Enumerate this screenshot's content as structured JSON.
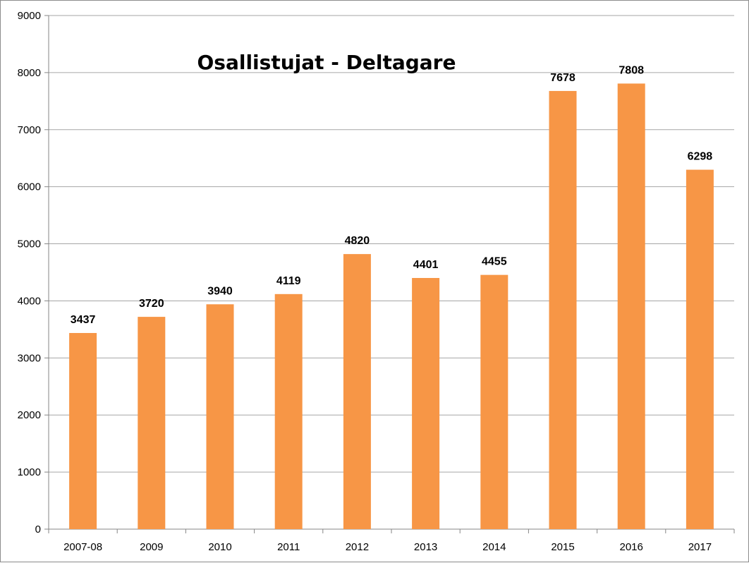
{
  "chart_data": {
    "type": "bar",
    "title": "Osallistujat - Deltagare",
    "xlabel": "",
    "ylabel": "",
    "categories": [
      "2007-08",
      "2009",
      "2010",
      "2011",
      "2012",
      "2013",
      "2014",
      "2015",
      "2016",
      "2017"
    ],
    "values": [
      3437,
      3720,
      3940,
      4119,
      4820,
      4401,
      4455,
      7678,
      7808,
      6298
    ],
    "ylim": [
      0,
      9000
    ],
    "yticks": [
      0,
      1000,
      2000,
      3000,
      4000,
      5000,
      6000,
      7000,
      8000,
      9000
    ],
    "grid": true,
    "legend": "none",
    "bar_color": "#F79646"
  }
}
